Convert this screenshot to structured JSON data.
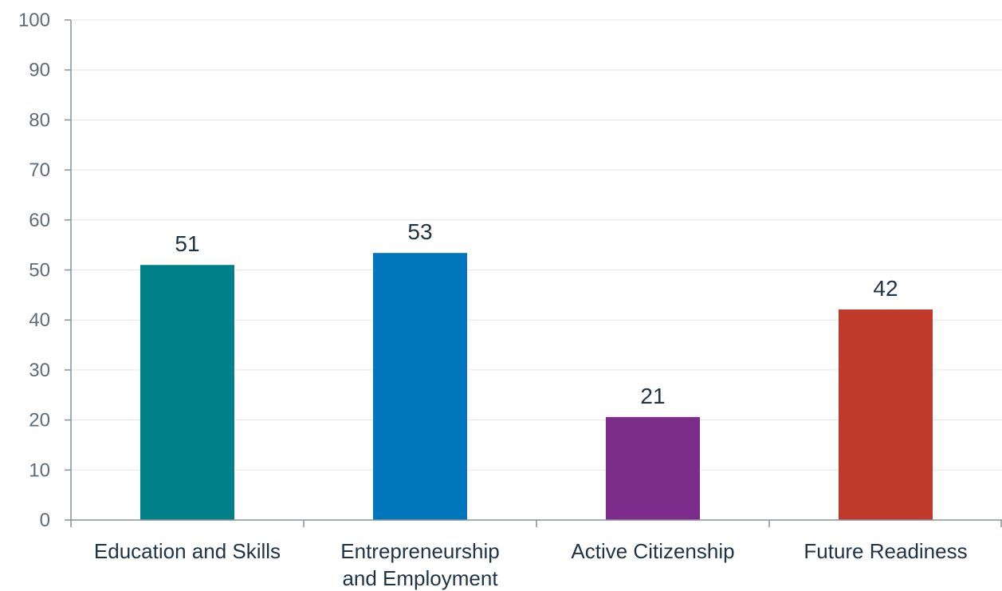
{
  "chart_data": {
    "type": "bar",
    "categories": [
      "Education and Skills",
      "Entrepreneurship and Employment",
      "Active Citizenship",
      "Future Readiness"
    ],
    "category_lines": [
      [
        "Education and Skills"
      ],
      [
        "Entrepreneurship",
        "and Employment"
      ],
      [
        "Active Citizenship"
      ],
      [
        "Future Readiness"
      ]
    ],
    "values": [
      51,
      53.4,
      20.6,
      42.1
    ],
    "value_labels": [
      "51",
      "53",
      "21",
      "42"
    ],
    "bar_colors": [
      "#008089",
      "#0176bd",
      "#7c2d8c",
      "#c0392b"
    ],
    "ylim": [
      0,
      100
    ],
    "yticks": [
      "0",
      "10",
      "20",
      "30",
      "40",
      "50",
      "60",
      "70",
      "80",
      "90",
      "100"
    ],
    "grid": true,
    "legend": false
  }
}
